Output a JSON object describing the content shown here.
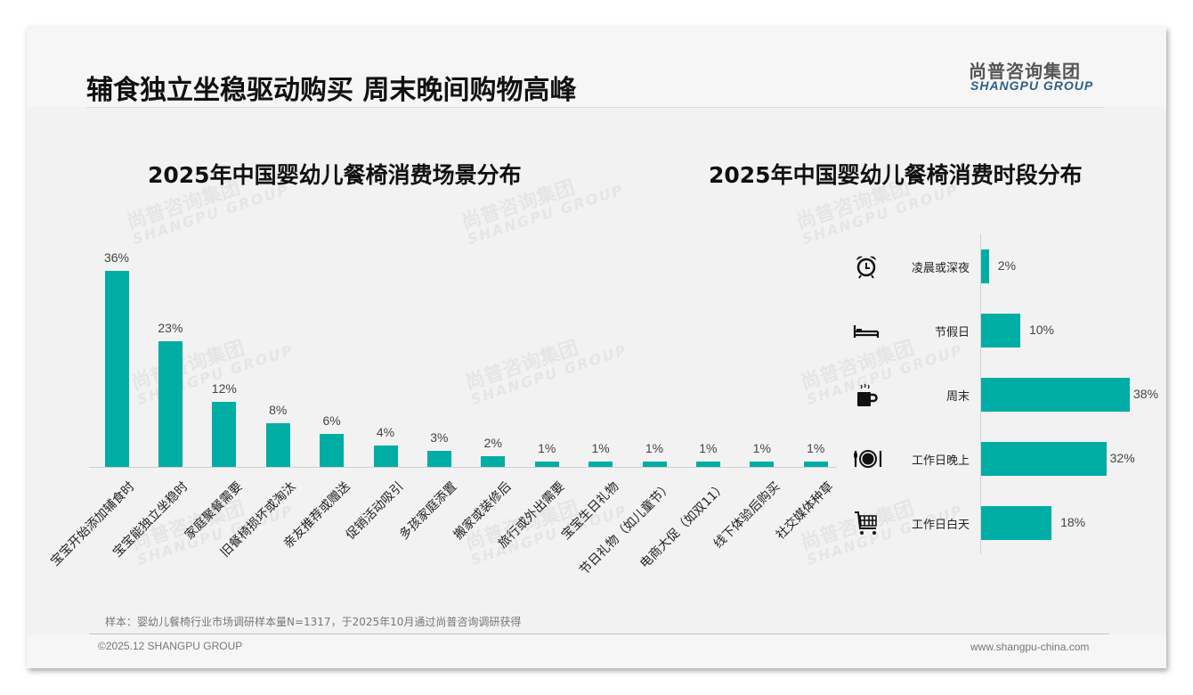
{
  "header": {
    "title": "辅食独立坐稳驱动购买 周末晚间购物高峰",
    "logo_cn": "尚普咨询集团",
    "logo_en": "SHANGPU GROUP"
  },
  "chart_data": [
    {
      "type": "bar",
      "title": "2025年中国婴幼儿餐椅消费场景分布",
      "categories": [
        "宝宝开始添加辅食时",
        "宝宝能独立坐稳时",
        "家庭聚餐需要",
        "旧餐椅损坏或淘汰",
        "亲友推荐或赠送",
        "促销活动吸引",
        "多孩家庭添置",
        "搬家或装修后",
        "旅行或外出需要",
        "宝宝生日礼物",
        "节日礼物（如儿童节）",
        "电商大促（如双11）",
        "线下体验后购买",
        "社交媒体种草"
      ],
      "values": [
        36,
        23,
        12,
        8,
        6,
        4,
        3,
        2,
        1,
        1,
        1,
        1,
        1,
        1
      ],
      "value_labels": [
        "36%",
        "23%",
        "12%",
        "8%",
        "6%",
        "4%",
        "3%",
        "2%",
        "1%",
        "1%",
        "1%",
        "1%",
        "1%",
        "1%"
      ],
      "unit": "%",
      "xlabel": "",
      "ylabel": "",
      "ylim": [
        0,
        36
      ],
      "grid": false
    },
    {
      "type": "bar",
      "orientation": "horizontal",
      "title": "2025年中国婴幼儿餐椅消费时段分布",
      "categories": [
        "凌晨或深夜",
        "节假日",
        "周末",
        "工作日晚上",
        "工作日白天"
      ],
      "icons": [
        "alarm-clock-icon",
        "bed-icon",
        "coffee-mug-icon",
        "plate-cutlery-icon",
        "shopping-cart-icon"
      ],
      "values": [
        2,
        10,
        38,
        32,
        18
      ],
      "value_labels": [
        "2%",
        "10%",
        "38%",
        "32%",
        "18%"
      ],
      "unit": "%",
      "xlim": [
        0,
        38
      ],
      "grid": false
    }
  ],
  "colors": {
    "bar": "#00ada4",
    "logo_en": "#2e5e86"
  },
  "footer": {
    "note": "样本：婴幼儿餐椅行业市场调研样本量N=1317，于2025年10月通过尚普咨询调研获得",
    "copyright": "©2025.12 SHANGPU GROUP",
    "url": "www.shangpu-china.com"
  }
}
